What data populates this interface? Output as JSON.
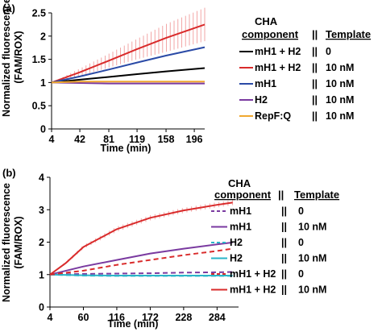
{
  "panels": [
    {
      "label": "(a)",
      "ylabel_line1": "Normalized fluorescence",
      "ylabel_line2": "(FAM/ROX)",
      "legend_header": {
        "component_line1": "CHA",
        "component_line2": "component",
        "separator": "||",
        "template": "Template"
      }
    },
    {
      "label": "(b)",
      "ylabel_line1": "Normalized fluorescence",
      "ylabel_line2": "(FAM/ROX)",
      "legend_header": {
        "component_line1": "CHA",
        "component_line2": "component",
        "separator": "||",
        "template": "Template"
      }
    }
  ],
  "chart_data": [
    {
      "type": "line",
      "xlabel": "Time (min)",
      "ylabel": "Normalized fluorescence (FAM/ROX)",
      "xlim": [
        4,
        210
      ],
      "ylim": [
        0,
        2.5
      ],
      "xticks": [
        "4",
        "42",
        "81",
        "119",
        "158",
        "196"
      ],
      "xtick_values": [
        4,
        42,
        81,
        119,
        158,
        196
      ],
      "yticks": [
        "0",
        "0.5",
        "1",
        "1.5",
        "2",
        "2.5"
      ],
      "ytick_values": [
        0,
        0.5,
        1,
        1.5,
        2,
        2.5
      ],
      "series": [
        {
          "name": "mH1 + H2",
          "template": "0",
          "color": "#000000",
          "dashed": false,
          "x": [
            4,
            42,
            81,
            119,
            158,
            210
          ],
          "y": [
            1.0,
            1.06,
            1.12,
            1.18,
            1.24,
            1.31
          ],
          "err": null
        },
        {
          "name": "mH1 + H2",
          "template": "10 nM",
          "color": "#d92b2b",
          "dashed": false,
          "x": [
            4,
            42,
            81,
            119,
            158,
            210
          ],
          "y": [
            1.0,
            1.22,
            1.47,
            1.72,
            1.96,
            2.25
          ],
          "err": [
            0.0,
            0.08,
            0.15,
            0.22,
            0.3,
            0.36
          ]
        },
        {
          "name": "mH1",
          "template": "10 nM",
          "color": "#2a4aa6",
          "dashed": false,
          "x": [
            4,
            42,
            81,
            119,
            158,
            210
          ],
          "y": [
            1.0,
            1.13,
            1.28,
            1.43,
            1.58,
            1.76
          ],
          "err": null
        },
        {
          "name": "H2",
          "template": "10 nM",
          "color": "#7a3aa0",
          "dashed": false,
          "x": [
            4,
            42,
            81,
            119,
            158,
            210
          ],
          "y": [
            1.0,
            0.99,
            0.98,
            0.98,
            0.98,
            0.98
          ],
          "err": null
        },
        {
          "name": "RepF:Q",
          "template": "10 nM",
          "color": "#f0a830",
          "dashed": false,
          "x": [
            4,
            42,
            81,
            119,
            158,
            210
          ],
          "y": [
            1.0,
            1.02,
            1.02,
            1.02,
            1.02,
            1.02
          ],
          "err": null
        }
      ]
    },
    {
      "type": "line",
      "xlabel": "Time (min)",
      "ylabel": "Normalized fluorescence (FAM/ROX)",
      "xlim": [
        4,
        320
      ],
      "ylim": [
        0,
        4
      ],
      "xticks": [
        "4",
        "60",
        "116",
        "172",
        "228",
        "284"
      ],
      "xtick_values": [
        4,
        60,
        116,
        172,
        228,
        284
      ],
      "yticks": [
        "0",
        "1",
        "2",
        "3",
        "4"
      ],
      "ytick_values": [
        0,
        1,
        2,
        3,
        4
      ],
      "series": [
        {
          "name": "mH1",
          "template": "0",
          "color": "#7a3aa0",
          "dashed": true,
          "x": [
            4,
            60,
            116,
            172,
            228,
            284,
            310
          ],
          "y": [
            1.0,
            1.02,
            1.03,
            1.04,
            1.06,
            1.07,
            1.08
          ],
          "err": null
        },
        {
          "name": "mH1",
          "template": "10 nM",
          "color": "#7a3aa0",
          "dashed": false,
          "x": [
            4,
            60,
            116,
            172,
            228,
            284,
            310
          ],
          "y": [
            1.0,
            1.25,
            1.45,
            1.65,
            1.8,
            1.93,
            1.99
          ],
          "err": null
        },
        {
          "name": "H2",
          "template": "0",
          "color": "#2ab5c8",
          "dashed": true,
          "x": [
            4,
            60,
            116,
            172,
            228,
            284,
            310
          ],
          "y": [
            1.0,
            0.97,
            0.96,
            0.96,
            0.96,
            0.96,
            0.96
          ],
          "err": null
        },
        {
          "name": "H2",
          "template": "10 nM",
          "color": "#2ab5c8",
          "dashed": false,
          "x": [
            4,
            60,
            116,
            172,
            228,
            284,
            310
          ],
          "y": [
            1.0,
            0.98,
            0.97,
            0.97,
            0.97,
            0.97,
            0.97
          ],
          "err": null
        },
        {
          "name": "mH1 + H2",
          "template": "0",
          "color": "#d92b2b",
          "dashed": true,
          "x": [
            4,
            60,
            116,
            172,
            228,
            284,
            310
          ],
          "y": [
            1.0,
            1.12,
            1.3,
            1.45,
            1.6,
            1.73,
            1.8
          ],
          "err": null
        },
        {
          "name": "mH1 + H2",
          "template": "10 nM",
          "color": "#d92b2b",
          "dashed": false,
          "x": [
            4,
            30,
            60,
            116,
            172,
            228,
            284,
            310
          ],
          "y": [
            1.0,
            1.35,
            1.85,
            2.4,
            2.75,
            2.98,
            3.15,
            3.22
          ],
          "err": [
            0.0,
            0.04,
            0.06,
            0.08,
            0.08,
            0.08,
            0.08,
            0.08
          ]
        }
      ]
    }
  ]
}
